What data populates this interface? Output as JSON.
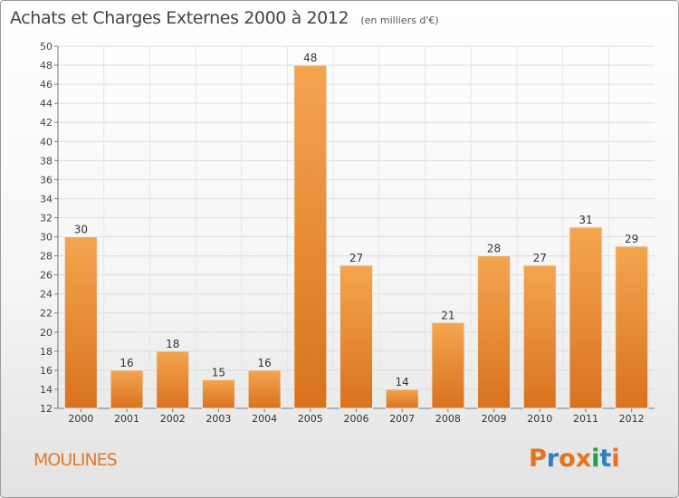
{
  "header": {
    "title": "Achats et Charges Externes 2000 à 2012",
    "subtitle": "(en milliers d'€)"
  },
  "footer": {
    "commune": "MOULINES",
    "logo_text": "Proxiti"
  },
  "colors": {
    "bar_light": "#f5a54f",
    "bar_dark": "#d9721f",
    "commune_text": "#e07a2e",
    "logo_letters": [
      "#e8731e",
      "#2e7fc4",
      "#e8731e",
      "#e8731e",
      "#1fa24a",
      "#2e7fc4",
      "#e8731e"
    ]
  },
  "chart_data": {
    "type": "bar",
    "title": "Achats et Charges Externes 2000 à 2012",
    "subtitle": "(en milliers d'€)",
    "categories": [
      "2000",
      "2001",
      "2002",
      "2003",
      "2004",
      "2005",
      "2006",
      "2007",
      "2008",
      "2009",
      "2010",
      "2011",
      "2012"
    ],
    "values": [
      30,
      16,
      18,
      15,
      16,
      48,
      27,
      14,
      21,
      28,
      27,
      31,
      29
    ],
    "ylim": [
      12,
      50
    ],
    "yticks": [
      12,
      14,
      16,
      18,
      20,
      22,
      24,
      26,
      28,
      30,
      32,
      34,
      36,
      38,
      40,
      42,
      44,
      46,
      48,
      50
    ],
    "grid": true,
    "data_labels": true
  }
}
